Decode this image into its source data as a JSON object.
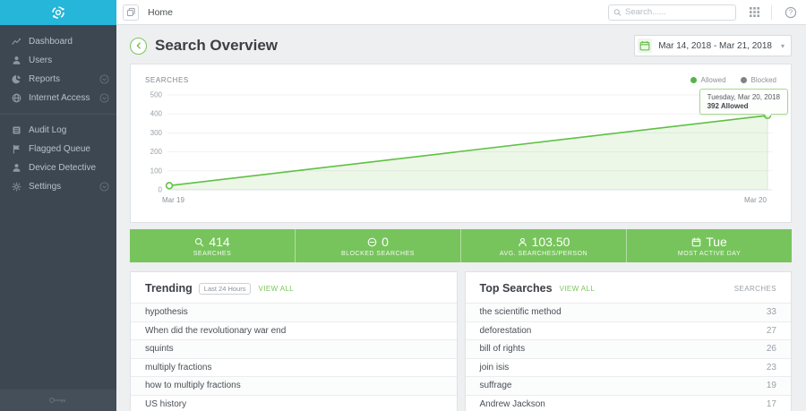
{
  "sidebar": {
    "items": [
      {
        "label": "Dashboard",
        "icon": "trend-chart-icon",
        "expandable": false
      },
      {
        "label": "Users",
        "icon": "user-icon",
        "expandable": false
      },
      {
        "label": "Reports",
        "icon": "pie-chart-icon",
        "expandable": true
      },
      {
        "label": "Internet Access",
        "icon": "globe-icon",
        "expandable": true
      },
      {
        "label": "Audit Log",
        "icon": "document-icon",
        "expandable": false
      },
      {
        "label": "Flagged Queue",
        "icon": "flag-icon",
        "expandable": false
      },
      {
        "label": "Device Detective",
        "icon": "user-icon",
        "expandable": false
      },
      {
        "label": "Settings",
        "icon": "gear-icon",
        "expandable": true
      }
    ]
  },
  "topbar": {
    "tab_label": "Home",
    "search_placeholder": "Search......"
  },
  "page": {
    "title": "Search Overview",
    "date_range": "Mar 14, 2018 - Mar 21, 2018"
  },
  "chart_data": {
    "type": "line",
    "title": "SEARCHES",
    "x_labels": [
      "Mar 19",
      "Mar 20"
    ],
    "ylim": [
      0,
      500
    ],
    "y_ticks": [
      500,
      400,
      300,
      200,
      100,
      0
    ],
    "grid": true,
    "legend_position": "top-right",
    "legend": [
      {
        "label": "Allowed",
        "color": "#55b44c"
      },
      {
        "label": "Blocked",
        "color": "#7d8489"
      }
    ],
    "series": [
      {
        "name": "Allowed",
        "color": "#5fc043",
        "values": [
          22,
          392
        ]
      }
    ],
    "tooltip": {
      "line1": "Tuesday, Mar 20, 2018",
      "line2": "392 Allowed"
    }
  },
  "stats": [
    {
      "icon": "search-icon",
      "value": "414",
      "label": "SEARCHES"
    },
    {
      "icon": "blocked-icon",
      "value": "0",
      "label": "BLOCKED SEARCHES"
    },
    {
      "icon": "person-icon",
      "value": "103.50",
      "label": "AVG. SEARCHES/PERSON"
    },
    {
      "icon": "calendar-icon",
      "value": "Tue",
      "label": "MOST ACTIVE DAY"
    }
  ],
  "trending": {
    "title": "Trending",
    "badge": "Last 24 Hours",
    "view_all": "VIEW ALL",
    "items": [
      "hypothesis",
      "When did the revolutionary war end",
      "squints",
      "multiply fractions",
      "how to multiply fractions",
      "US history"
    ]
  },
  "top_searches": {
    "title": "Top Searches",
    "view_all": "VIEW ALL",
    "column": "SEARCHES",
    "rows": [
      {
        "term": "the scientific method",
        "count": 33
      },
      {
        "term": "deforestation",
        "count": 27
      },
      {
        "term": "bill of rights",
        "count": 26
      },
      {
        "term": "join isis",
        "count": 23
      },
      {
        "term": "suffrage",
        "count": 19
      },
      {
        "term": "Andrew Jackson",
        "count": 17
      }
    ]
  },
  "colors": {
    "accent_green": "#77c45c",
    "line_green": "#5fc043",
    "brand_cyan": "#25b6d9",
    "sidebar_bg": "#3d4751"
  }
}
